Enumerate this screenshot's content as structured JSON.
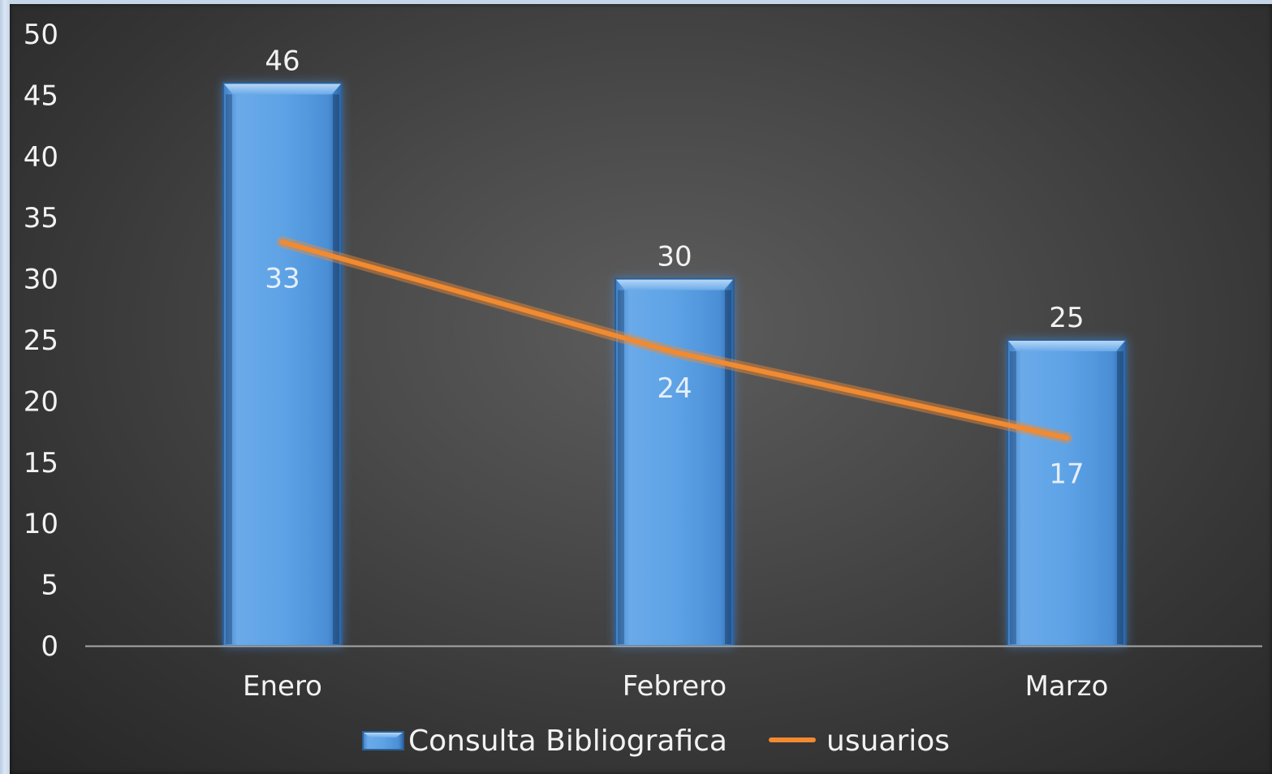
{
  "chart_data": {
    "type": "bar",
    "categories": [
      "Enero",
      "Febrero",
      "Marzo"
    ],
    "series": [
      {
        "name": "Consulta Bibliografica",
        "type": "bar",
        "values": [
          46,
          30,
          25
        ]
      },
      {
        "name": "usuarios",
        "type": "line",
        "values": [
          33,
          24,
          17
        ]
      }
    ],
    "yticks": [
      "0",
      "5",
      "10",
      "15",
      "20",
      "25",
      "30",
      "35",
      "40",
      "45",
      "50"
    ],
    "ylim": [
      0,
      50
    ],
    "grid": false,
    "legend_position": "bottom",
    "colors": {
      "bar": "#5ea3e6",
      "bar_edge": "#2b5f96",
      "line": "#f28a30",
      "background": "#4a4a4a"
    }
  }
}
